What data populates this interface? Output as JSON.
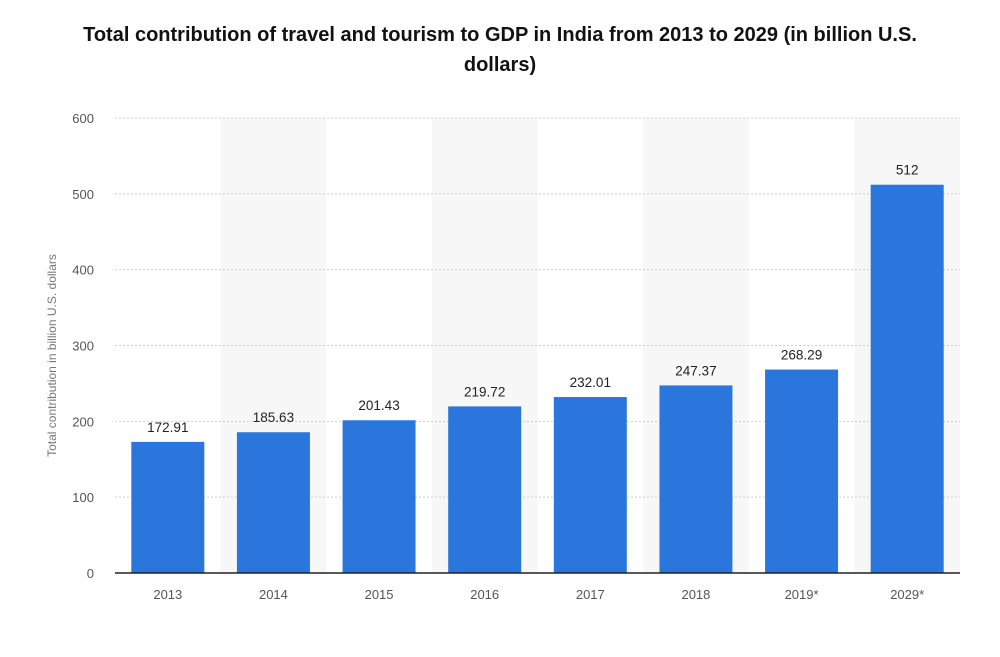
{
  "chart_data": {
    "type": "bar",
    "title": "Total contribution of travel and tourism to GDP in India from 2013 to 2029 (in billion U.S. dollars)",
    "xlabel": "",
    "ylabel": "Total contribution in billion U.S. dollars",
    "categories": [
      "2013",
      "2014",
      "2015",
      "2016",
      "2017",
      "2018",
      "2019*",
      "2029*"
    ],
    "values": [
      172.91,
      185.63,
      201.43,
      219.72,
      232.01,
      247.37,
      268.29,
      512
    ],
    "value_labels": [
      "172.91",
      "185.63",
      "201.43",
      "219.72",
      "232.01",
      "247.37",
      "268.29",
      "512"
    ],
    "ylim": [
      0,
      600
    ],
    "yticks": [
      0,
      100,
      200,
      300,
      400,
      500,
      600
    ],
    "grid": true,
    "legend": "none",
    "bar_color": "#2a76dd",
    "alt_band_color": "#f7f7f7"
  }
}
